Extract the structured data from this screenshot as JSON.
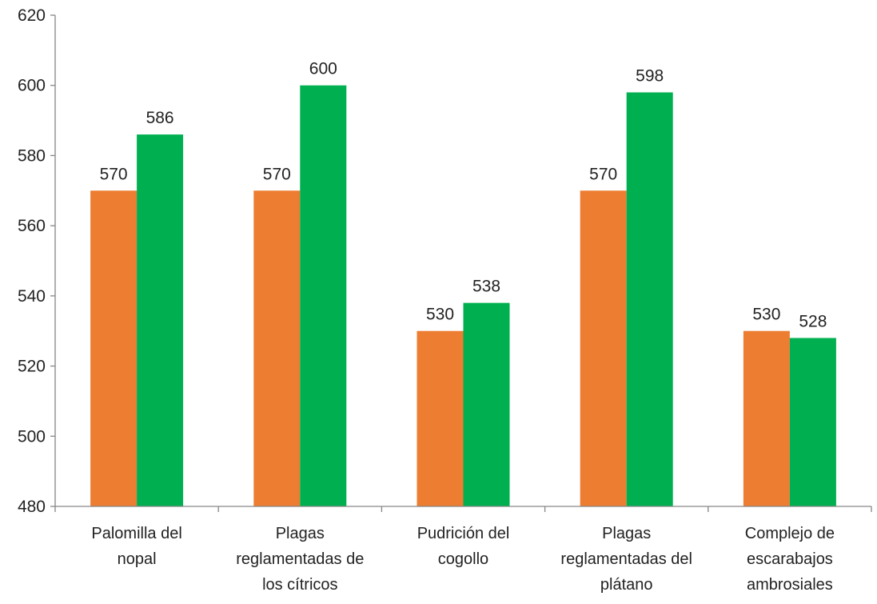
{
  "chart_data": {
    "type": "bar",
    "title": "",
    "xlabel": "",
    "ylabel": "",
    "ylim": [
      480,
      620
    ],
    "yticks": [
      480,
      500,
      520,
      540,
      560,
      580,
      600,
      620
    ],
    "grid": false,
    "legend": "none",
    "categories": [
      [
        "Palomilla del",
        "nopal"
      ],
      [
        "Plagas",
        "reglamentadas de",
        "los cítricos"
      ],
      [
        "Pudrición del",
        "cogollo"
      ],
      [
        "Plagas",
        "reglamentadas del",
        "plátano"
      ],
      [
        "Complejo de",
        "escarabajos",
        "ambrosiales"
      ]
    ],
    "series": [
      {
        "color": "#ED7D31",
        "values": [
          570,
          570,
          530,
          570,
          530
        ]
      },
      {
        "color": "#00B050",
        "values": [
          586,
          600,
          538,
          598,
          528
        ]
      }
    ]
  }
}
